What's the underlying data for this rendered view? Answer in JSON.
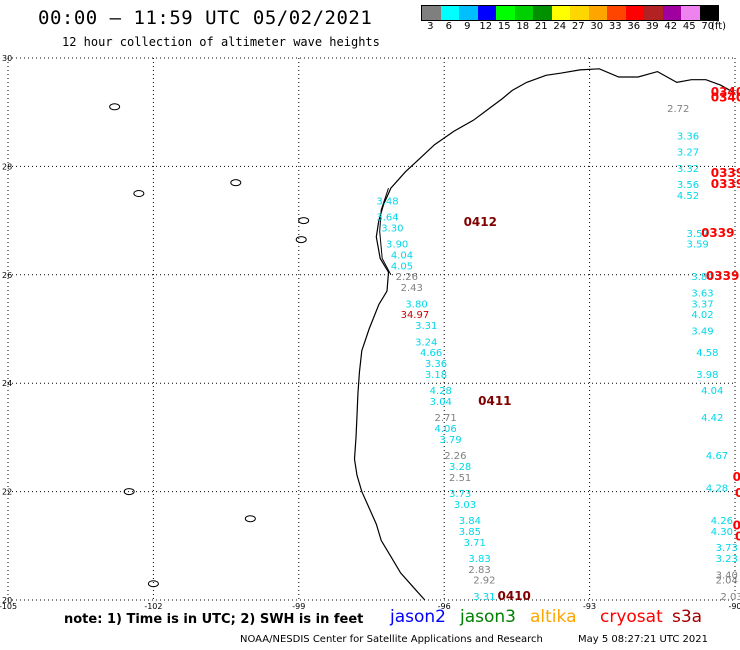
{
  "header": {
    "title": "00:00 – 11:59 UTC 05/02/2021",
    "subtitle": "12 hour collection of altimeter wave heights"
  },
  "color_scale": {
    "unit": "(ft)",
    "entries": [
      {
        "color": "#7f7f7f",
        "label": "3"
      },
      {
        "color": "#00ffff",
        "label": "6"
      },
      {
        "color": "#00bfff",
        "label": "9"
      },
      {
        "color": "#0000ff",
        "label": "12"
      },
      {
        "color": "#00ff00",
        "label": "15"
      },
      {
        "color": "#00d000",
        "label": "18"
      },
      {
        "color": "#009000",
        "label": "21"
      },
      {
        "color": "#ffff00",
        "label": "24"
      },
      {
        "color": "#ffd700",
        "label": "27"
      },
      {
        "color": "#ffa500",
        "label": "30"
      },
      {
        "color": "#ff4500",
        "label": "33"
      },
      {
        "color": "#ff0000",
        "label": "36"
      },
      {
        "color": "#b22222",
        "label": "39"
      },
      {
        "color": "#a000a0",
        "label": "42"
      },
      {
        "color": "#ee82ee",
        "label": "45"
      },
      {
        "color": "#000000",
        "label": "70"
      }
    ]
  },
  "map": {
    "lon_labels": [
      "-105",
      "-102",
      "-99",
      "-96",
      "-93",
      "-90"
    ],
    "lat_labels": [
      "30",
      "28",
      "26",
      "24",
      "22",
      "20"
    ],
    "pass_times": [
      {
        "text": "0412",
        "color": "#800000",
        "lon": -95.6,
        "lat": 26.9
      },
      {
        "text": "0411",
        "color": "#800000",
        "lon": -95.3,
        "lat": 23.6
      },
      {
        "text": "0410",
        "color": "#800000",
        "lon": -94.9,
        "lat": 20.0
      },
      {
        "text": "0340",
        "color": "#ff0000",
        "lon": -90.5,
        "lat": 29.3
      },
      {
        "text": "0340",
        "color": "#ff0000",
        "lon": -90.5,
        "lat": 29.2
      },
      {
        "text": "0339",
        "color": "#ff0000",
        "lon": -90.5,
        "lat": 27.8
      },
      {
        "text": "0339",
        "color": "#ff0000",
        "lon": -90.5,
        "lat": 27.6
      },
      {
        "text": "0339",
        "color": "#ff0000",
        "lon": -90.7,
        "lat": 26.7
      },
      {
        "text": "0339",
        "color": "#ff0000",
        "lon": -90.6,
        "lat": 25.9
      },
      {
        "text": "0.",
        "color": "#ff0000",
        "lon": -90.05,
        "lat": 22.2
      },
      {
        "text": "0",
        "color": "#ff0000",
        "lon": -90.0,
        "lat": 21.9
      },
      {
        "text": "0.",
        "color": "#ff0000",
        "lon": -90.05,
        "lat": 21.3
      },
      {
        "text": "0",
        "color": "#ff0000",
        "lon": -90.0,
        "lat": 21.1
      }
    ],
    "observations": [
      {
        "text": "3.48",
        "color": "#00d8e8",
        "lon": -97.4,
        "lat": 27.3
      },
      {
        "text": "3.64",
        "color": "#00d8e8",
        "lon": -97.4,
        "lat": 27.0
      },
      {
        "text": "3.30",
        "color": "#00d8e8",
        "lon": -97.3,
        "lat": 26.8
      },
      {
        "text": "3.90",
        "color": "#00d8e8",
        "lon": -97.2,
        "lat": 26.5
      },
      {
        "text": "4.04",
        "color": "#00d8e8",
        "lon": -97.1,
        "lat": 26.3
      },
      {
        "text": "4.05",
        "color": "#00d8e8",
        "lon": -97.1,
        "lat": 26.1
      },
      {
        "text": "2.26",
        "color": "#808080",
        "lon": -97.0,
        "lat": 25.9
      },
      {
        "text": "2.43",
        "color": "#808080",
        "lon": -96.9,
        "lat": 25.7
      },
      {
        "text": "3.80",
        "color": "#00d8e8",
        "lon": -96.8,
        "lat": 25.4
      },
      {
        "text": "34.97",
        "color": "#cc0000",
        "lon": -96.9,
        "lat": 25.2
      },
      {
        "text": "3.31",
        "color": "#00d8e8",
        "lon": -96.6,
        "lat": 25.0
      },
      {
        "text": "3.24",
        "color": "#00d8e8",
        "lon": -96.6,
        "lat": 24.7
      },
      {
        "text": "4.66",
        "color": "#00d8e8",
        "lon": -96.5,
        "lat": 24.5
      },
      {
        "text": "3.36",
        "color": "#00d8e8",
        "lon": -96.4,
        "lat": 24.3
      },
      {
        "text": "3.18",
        "color": "#00d8e8",
        "lon": -96.4,
        "lat": 24.1
      },
      {
        "text": "4.28",
        "color": "#00d8e8",
        "lon": -96.3,
        "lat": 23.8
      },
      {
        "text": "3.04",
        "color": "#00d8e8",
        "lon": -96.3,
        "lat": 23.6
      },
      {
        "text": "2.71",
        "color": "#808080",
        "lon": -96.2,
        "lat": 23.3
      },
      {
        "text": "4.06",
        "color": "#00d8e8",
        "lon": -96.2,
        "lat": 23.1
      },
      {
        "text": "3.79",
        "color": "#00d8e8",
        "lon": -96.1,
        "lat": 22.9
      },
      {
        "text": "2.26",
        "color": "#808080",
        "lon": -96.0,
        "lat": 22.6
      },
      {
        "text": "3.28",
        "color": "#00d8e8",
        "lon": -95.9,
        "lat": 22.4
      },
      {
        "text": "2.51",
        "color": "#808080",
        "lon": -95.9,
        "lat": 22.2
      },
      {
        "text": "3.73",
        "color": "#00d8e8",
        "lon": -95.9,
        "lat": 21.9
      },
      {
        "text": "3.03",
        "color": "#00d8e8",
        "lon": -95.8,
        "lat": 21.7
      },
      {
        "text": "3.84",
        "color": "#00d8e8",
        "lon": -95.7,
        "lat": 21.4
      },
      {
        "text": "3.85",
        "color": "#00d8e8",
        "lon": -95.7,
        "lat": 21.2
      },
      {
        "text": "3.71",
        "color": "#00d8e8",
        "lon": -95.6,
        "lat": 21.0
      },
      {
        "text": "3.83",
        "color": "#00d8e8",
        "lon": -95.5,
        "lat": 20.7
      },
      {
        "text": "2.83",
        "color": "#808080",
        "lon": -95.5,
        "lat": 20.5
      },
      {
        "text": "2.92",
        "color": "#808080",
        "lon": -95.4,
        "lat": 20.3
      },
      {
        "text": "3.31",
        "color": "#00d8e8",
        "lon": -95.4,
        "lat": 20.0
      },
      {
        "text": "2.72",
        "color": "#808080",
        "lon": -91.4,
        "lat": 29.0
      },
      {
        "text": "3.36",
        "color": "#00d8e8",
        "lon": -91.2,
        "lat": 28.5
      },
      {
        "text": "3.27",
        "color": "#00d8e8",
        "lon": -91.2,
        "lat": 28.2
      },
      {
        "text": "3.32",
        "color": "#00d8e8",
        "lon": -91.2,
        "lat": 27.9
      },
      {
        "text": "3.56",
        "color": "#00d8e8",
        "lon": -91.2,
        "lat": 27.6
      },
      {
        "text": "4.52",
        "color": "#00d8e8",
        "lon": -91.2,
        "lat": 27.4
      },
      {
        "text": "3.57",
        "color": "#00d8e8",
        "lon": -91.0,
        "lat": 26.7
      },
      {
        "text": "3.59",
        "color": "#00d8e8",
        "lon": -91.0,
        "lat": 26.5
      },
      {
        "text": "3.84",
        "color": "#00d8e8",
        "lon": -90.9,
        "lat": 25.9
      },
      {
        "text": "3.63",
        "color": "#00d8e8",
        "lon": -90.9,
        "lat": 25.6
      },
      {
        "text": "3.37",
        "color": "#00d8e8",
        "lon": -90.9,
        "lat": 25.4
      },
      {
        "text": "4.02",
        "color": "#00d8e8",
        "lon": -90.9,
        "lat": 25.2
      },
      {
        "text": "3.49",
        "color": "#00d8e8",
        "lon": -90.9,
        "lat": 24.9
      },
      {
        "text": "4.58",
        "color": "#00d8e8",
        "lon": -90.8,
        "lat": 24.5
      },
      {
        "text": "3.98",
        "color": "#00d8e8",
        "lon": -90.8,
        "lat": 24.1
      },
      {
        "text": "4.04",
        "color": "#00d8e8",
        "lon": -90.7,
        "lat": 23.8
      },
      {
        "text": "4.42",
        "color": "#00d8e8",
        "lon": -90.7,
        "lat": 23.3
      },
      {
        "text": "4.67",
        "color": "#00d8e8",
        "lon": -90.6,
        "lat": 22.6
      },
      {
        "text": "4.28",
        "color": "#00d8e8",
        "lon": -90.6,
        "lat": 22.0
      },
      {
        "text": "4.26",
        "color": "#00d8e8",
        "lon": -90.5,
        "lat": 21.4
      },
      {
        "text": "4.30",
        "color": "#00d8e8",
        "lon": -90.5,
        "lat": 21.2
      },
      {
        "text": "3.73",
        "color": "#00d8e8",
        "lon": -90.4,
        "lat": 20.9
      },
      {
        "text": "3.23",
        "color": "#00d8e8",
        "lon": -90.4,
        "lat": 20.7
      },
      {
        "text": "3.40",
        "color": "#808080",
        "lon": -90.4,
        "lat": 20.4
      },
      {
        "text": "2.04",
        "color": "#808080",
        "lon": -90.4,
        "lat": 20.3
      },
      {
        "text": "2.03",
        "color": "#808080",
        "lon": -90.3,
        "lat": 20.0
      }
    ]
  },
  "footer": {
    "note": "note: 1) Time is in UTC; 2) SWH is in feet",
    "satellites": [
      {
        "name": "jason2",
        "color": "#0000ff"
      },
      {
        "name": "jason3",
        "color": "#008000"
      },
      {
        "name": "altika",
        "color": "#ffa500"
      },
      {
        "name": "cryosat",
        "color": "#ff0000"
      },
      {
        "name": "s3a",
        "color": "#a00000"
      }
    ],
    "credit": "NOAA/NESDIS Center for Satellite Applications and Research",
    "timestamp": "May  5 08:27:21 UTC 2021"
  }
}
